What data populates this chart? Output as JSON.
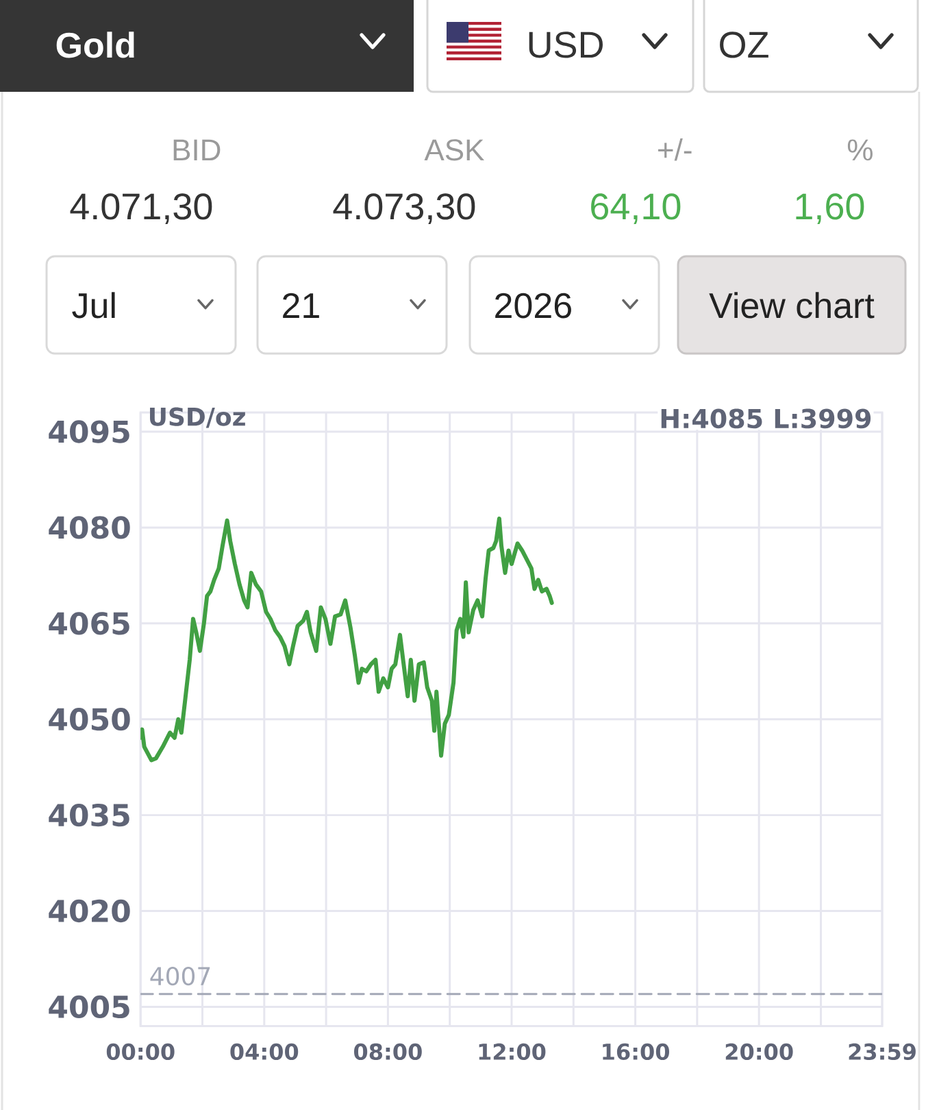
{
  "chart_data": {
    "type": "line",
    "ylabel": "USD/oz",
    "annotations": [
      "Gold",
      "USD",
      "OZ",
      "BID",
      "ASK",
      "+/-",
      "%",
      "4.071,30",
      "4.073,30",
      "64,10",
      "1,60",
      "Jul",
      "21",
      "2026",
      "View chart",
      "H:4085 L:3999"
    ],
    "x": [
      0,
      0.05,
      0.12,
      0.35,
      0.5,
      0.72,
      0.95,
      1.1,
      1.22,
      1.32,
      1.44,
      1.59,
      1.7,
      1.8,
      1.92,
      2.05,
      2.15,
      2.26,
      2.38,
      2.53,
      2.65,
      2.8,
      2.9,
      3.05,
      3.2,
      3.35,
      3.46,
      3.58,
      3.73,
      3.9,
      4.06,
      4.2,
      4.36,
      4.51,
      4.66,
      4.81,
      4.93,
      5.08,
      5.26,
      5.38,
      5.5,
      5.68,
      5.83,
      5.98,
      6.14,
      6.29,
      6.47,
      6.62,
      6.79,
      6.93,
      7.05,
      7.16,
      7.3,
      7.45,
      7.6,
      7.7,
      7.85,
      8.0,
      8.12,
      8.24,
      8.39,
      8.49,
      8.64,
      8.74,
      8.86,
      9.0,
      9.16,
      9.27,
      9.42,
      9.5,
      9.57,
      9.72,
      9.84,
      9.97,
      10.12,
      10.22,
      10.34,
      10.44,
      10.52,
      10.61,
      10.76,
      10.9,
      11.05,
      11.16,
      11.26,
      11.41,
      11.5,
      11.6,
      11.67,
      11.79,
      11.9,
      12.0,
      12.19,
      12.34,
      12.49,
      12.64,
      12.74,
      12.86,
      12.98,
      13.13,
      13.23,
      13.3
    ],
    "values": [
      4047.1,
      4048.4,
      4045.7,
      4043.6,
      4043.9,
      4045.7,
      4047.9,
      4047.1,
      4050,
      4047.9,
      4052.9,
      4059.3,
      4065.7,
      4063.6,
      4060.7,
      4065,
      4069.3,
      4070,
      4071.8,
      4073.6,
      4077.1,
      4081.1,
      4077.9,
      4074.3,
      4071.1,
      4068.6,
      4067.5,
      4072.9,
      4071.1,
      4070,
      4066.8,
      4065.7,
      4063.9,
      4062.9,
      4061.4,
      4058.6,
      4061.4,
      4064.6,
      4065.4,
      4066.8,
      4063.6,
      4060.7,
      4067.5,
      4065.7,
      4061.8,
      4066.1,
      4066.4,
      4068.6,
      4064.3,
      4060,
      4055.7,
      4057.9,
      4057.5,
      4058.6,
      4059.3,
      4054.3,
      4056.4,
      4055,
      4057.9,
      4058.6,
      4063.2,
      4059.3,
      4053.6,
      4059.3,
      4052.9,
      4058.6,
      4058.9,
      4055,
      4052.9,
      4048.2,
      4054.3,
      4044.3,
      4049.3,
      4050.7,
      4055.7,
      4063.9,
      4065.7,
      4062.9,
      4071.4,
      4063.6,
      4067.1,
      4068.6,
      4066.1,
      4072.1,
      4076.4,
      4076.8,
      4077.9,
      4081.4,
      4077.1,
      4072.9,
      4076.4,
      4074.3,
      4077.5,
      4076.4,
      4075,
      4073.6,
      4070.4,
      4071.8,
      4070,
      4070.4,
      4069.3,
      4068.2
    ],
    "color": "#41a043",
    "xlim": [
      0,
      23.983
    ],
    "ylim": [
      4002,
      4098
    ],
    "xticks": [
      {
        "value": 0,
        "label": "00:00"
      },
      {
        "value": 2,
        "label": null
      },
      {
        "value": 4,
        "label": "04:00"
      },
      {
        "value": 6,
        "label": null
      },
      {
        "value": 8,
        "label": "08:00"
      },
      {
        "value": 10,
        "label": null
      },
      {
        "value": 12,
        "label": "12:00"
      },
      {
        "value": 14,
        "label": null
      },
      {
        "value": 16,
        "label": "16:00"
      },
      {
        "value": 18,
        "label": null
      },
      {
        "value": 20,
        "label": "20:00"
      },
      {
        "value": 22,
        "label": null
      },
      {
        "value": 23.983,
        "label": "23:59"
      }
    ],
    "yticks": [
      4005,
      4020,
      4035,
      4050,
      4065,
      4080,
      4095
    ],
    "grid": true,
    "ref_lines": [
      {
        "axis": "y",
        "value": 4007,
        "label": "4007",
        "color": "#a3a8b6",
        "line_style": "dashed"
      }
    ]
  }
}
